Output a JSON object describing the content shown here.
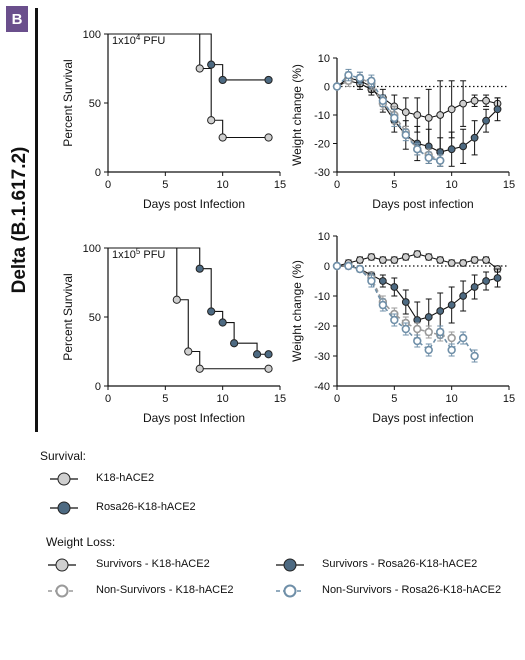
{
  "panel_label": "B",
  "variant_label": "Delta (B.1.617.2)",
  "colors": {
    "k18": "#cfcfcf",
    "rosa": "#4d6a82",
    "nonsurv_k18": "#9a9a9a",
    "nonsurv_rosa": "#6f8fa8",
    "accent_label_bg": "#6a4f8c"
  },
  "chart_data": [
    {
      "id": "survival-1e4",
      "type": "line",
      "annotation": {
        "base": "1x10",
        "exp": "4",
        "suffix": " PFU"
      },
      "xlabel": "Days post Infection",
      "ylabel": "Percent Survival",
      "xlim": [
        0,
        15
      ],
      "ylim": [
        0,
        100
      ],
      "xticks": [
        "0",
        "5",
        "10",
        "15"
      ],
      "yticks": [
        "0",
        "50",
        "100"
      ],
      "series": [
        {
          "key": "k18",
          "step": true,
          "line": [
            [
              0,
              100
            ],
            [
              8,
              100
            ],
            [
              8,
              75
            ],
            [
              9,
              75
            ],
            [
              9,
              37.5
            ],
            [
              10,
              37.5
            ],
            [
              10,
              25
            ],
            [
              14,
              25
            ]
          ],
          "points": [
            [
              8,
              75
            ],
            [
              9,
              37.5
            ],
            [
              10,
              25
            ],
            [
              14,
              25
            ]
          ]
        },
        {
          "key": "rosa",
          "step": true,
          "line": [
            [
              0,
              100
            ],
            [
              9,
              100
            ],
            [
              9,
              77.8
            ],
            [
              10,
              77.8
            ],
            [
              10,
              66.7
            ],
            [
              14,
              66.7
            ]
          ],
          "points": [
            [
              9,
              77.8
            ],
            [
              10,
              66.7
            ],
            [
              14,
              66.7
            ]
          ]
        }
      ]
    },
    {
      "id": "weight-1e4",
      "type": "line",
      "xlabel": "Days post infection",
      "ylabel": "Weight change (%)",
      "xlim": [
        0,
        15
      ],
      "ylim": [
        -30,
        10
      ],
      "xticks": [
        "0",
        "5",
        "10",
        "15"
      ],
      "yticks": [
        "-30",
        "-20",
        "-10",
        "0",
        "10"
      ],
      "reference_line": 0,
      "series": [
        {
          "key": "surv_k18",
          "x": [
            0,
            1,
            2,
            3,
            4,
            5,
            6,
            7,
            8,
            9,
            10,
            11,
            12,
            13,
            14
          ],
          "y": [
            0,
            2,
            1,
            -1,
            -4,
            -7,
            -9,
            -10,
            -11,
            -10,
            -8,
            -6,
            -5,
            -5,
            -6
          ],
          "err": [
            0,
            2,
            2,
            2,
            3,
            4,
            5,
            6,
            10,
            12,
            10,
            8,
            2,
            2,
            2
          ]
        },
        {
          "key": "surv_rosa",
          "x": [
            0,
            1,
            2,
            3,
            4,
            5,
            6,
            7,
            8,
            9,
            10,
            11,
            12,
            13,
            14
          ],
          "y": [
            0,
            3,
            2,
            0,
            -6,
            -12,
            -17,
            -20,
            -21,
            -23,
            -22,
            -21,
            -18,
            -12,
            -8
          ],
          "err": [
            0,
            2,
            2,
            2,
            3,
            4,
            5,
            6,
            6,
            5,
            6,
            6,
            6,
            4,
            4
          ]
        },
        {
          "key": "nonsurv_k18",
          "x": [
            0,
            1,
            2,
            3,
            4,
            5,
            6,
            7,
            8,
            9
          ],
          "y": [
            0,
            2,
            3,
            1,
            -6,
            -10,
            -16,
            -22,
            -24,
            -26
          ],
          "err": [
            0,
            2,
            2,
            2,
            2,
            3,
            2,
            2,
            2,
            2
          ]
        },
        {
          "key": "nonsurv_rosa",
          "x": [
            0,
            1,
            2,
            3,
            4,
            5,
            6,
            7,
            8,
            9
          ],
          "y": [
            0,
            4,
            3,
            2,
            -5,
            -11,
            -17,
            -22,
            -25,
            -26
          ],
          "err": [
            0,
            2,
            2,
            2,
            2,
            3,
            2,
            2,
            2,
            2
          ]
        }
      ]
    },
    {
      "id": "survival-1e5",
      "type": "line",
      "annotation": {
        "base": "1x10",
        "exp": "5",
        "suffix": " PFU"
      },
      "xlabel": "Days post Infection",
      "ylabel": "Percent Survival",
      "xlim": [
        0,
        15
      ],
      "ylim": [
        0,
        100
      ],
      "xticks": [
        "0",
        "5",
        "10",
        "15"
      ],
      "yticks": [
        "0",
        "50",
        "100"
      ],
      "series": [
        {
          "key": "k18",
          "step": true,
          "line": [
            [
              0,
              100
            ],
            [
              6,
              100
            ],
            [
              6,
              62.5
            ],
            [
              7,
              62.5
            ],
            [
              7,
              25
            ],
            [
              8,
              25
            ],
            [
              8,
              12.5
            ],
            [
              14,
              12.5
            ]
          ],
          "points": [
            [
              6,
              62.5
            ],
            [
              7,
              25
            ],
            [
              8,
              12.5
            ],
            [
              14,
              12.5
            ]
          ]
        },
        {
          "key": "rosa",
          "step": true,
          "line": [
            [
              0,
              100
            ],
            [
              8,
              100
            ],
            [
              8,
              85
            ],
            [
              9,
              85
            ],
            [
              9,
              54
            ],
            [
              10,
              54
            ],
            [
              10,
              46
            ],
            [
              11,
              46
            ],
            [
              11,
              31
            ],
            [
              13,
              31
            ],
            [
              13,
              23
            ],
            [
              14,
              23
            ]
          ],
          "points": [
            [
              8,
              85
            ],
            [
              9,
              54
            ],
            [
              10,
              46
            ],
            [
              11,
              31
            ],
            [
              13,
              23
            ],
            [
              14,
              23
            ]
          ]
        }
      ]
    },
    {
      "id": "weight-1e5",
      "type": "line",
      "xlabel": "Days post infection",
      "ylabel": "Weight change (%)",
      "xlim": [
        0,
        15
      ],
      "ylim": [
        -40,
        10
      ],
      "xticks": [
        "0",
        "5",
        "10",
        "15"
      ],
      "yticks": [
        "-40",
        "-30",
        "-20",
        "-10",
        "0",
        "10"
      ],
      "reference_line": 0,
      "series": [
        {
          "key": "surv_k18",
          "x": [
            0,
            1,
            2,
            3,
            4,
            5,
            6,
            7,
            8,
            9,
            10,
            11,
            12,
            13,
            14
          ],
          "y": [
            0,
            1,
            2,
            3,
            2,
            2,
            3,
            4,
            3,
            2,
            1,
            1,
            2,
            2,
            -1
          ],
          "err": [
            0,
            1,
            1,
            1,
            1,
            1,
            1,
            1,
            1,
            1,
            1,
            1,
            1,
            1,
            1
          ]
        },
        {
          "key": "surv_rosa",
          "x": [
            0,
            1,
            2,
            3,
            4,
            5,
            6,
            7,
            8,
            9,
            10,
            11,
            12,
            13,
            14
          ],
          "y": [
            0,
            0,
            -1,
            -3,
            -5,
            -7,
            -12,
            -18,
            -17,
            -15,
            -13,
            -10,
            -7,
            -5,
            -4
          ],
          "err": [
            0,
            1,
            1,
            1,
            2,
            3,
            4,
            6,
            6,
            6,
            6,
            5,
            4,
            3,
            3
          ]
        },
        {
          "key": "nonsurv_k18",
          "x": [
            0,
            1,
            2,
            3,
            4,
            5,
            6,
            7,
            8,
            9,
            10
          ],
          "y": [
            0,
            0,
            -1,
            -4,
            -12,
            -16,
            -19,
            -21,
            -22,
            -23,
            -24
          ],
          "err": [
            0,
            1,
            1,
            2,
            2,
            2,
            2,
            2,
            2,
            2,
            2
          ]
        },
        {
          "key": "nonsurv_rosa",
          "x": [
            0,
            1,
            2,
            3,
            4,
            5,
            6,
            7,
            8,
            9,
            10,
            11,
            12
          ],
          "y": [
            0,
            0,
            -1,
            -5,
            -13,
            -18,
            -21,
            -25,
            -28,
            -22,
            -28,
            -24,
            -30
          ],
          "err": [
            0,
            1,
            1,
            2,
            2,
            2,
            2,
            2,
            2,
            2,
            2,
            2,
            2
          ]
        }
      ]
    }
  ],
  "legend": {
    "survival_title": "Survival:",
    "survival_items": [
      {
        "key": "k18",
        "label": "K18-hACE2"
      },
      {
        "key": "rosa",
        "label": "Rosa26-K18-hACE2"
      }
    ],
    "weight_title": "Weight Loss:",
    "weight_items": [
      {
        "key": "surv_k18",
        "label": "Survivors - K18-hACE2"
      },
      {
        "key": "surv_rosa",
        "label": "Survivors - Rosa26-K18-hACE2"
      },
      {
        "key": "nonsurv_k18",
        "label": "Non-Survivors - K18-hACE2"
      },
      {
        "key": "nonsurv_rosa",
        "label": "Non-Survivors - Rosa26-K18-hACE2"
      }
    ]
  }
}
